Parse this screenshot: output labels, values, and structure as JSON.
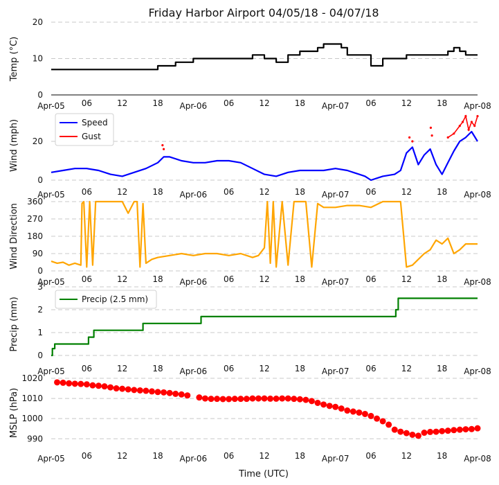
{
  "title": "Friday Harbor Airport 04/05/18 - 04/07/18",
  "xlabel": "Time (UTC)",
  "x_tick_labels": [
    "Apr-05",
    "06",
    "12",
    "18",
    "Apr-06",
    "06",
    "12",
    "18",
    "Apr-07",
    "06",
    "12",
    "18",
    "Apr-08"
  ],
  "x_range_hours": [
    0,
    72
  ],
  "colors": {
    "temp": "#000000",
    "speed": "#0000ff",
    "gust": "#ff0000",
    "dir": "#ffa500",
    "precip": "#008000",
    "mslp": "#ff0000",
    "grid": "#c8c8c8"
  },
  "chart_data": [
    {
      "id": "temp",
      "type": "line",
      "ylabel": "Temp ($^\\circ$C)",
      "ylabel_display": "Temp (°C)",
      "ylim": [
        0,
        20
      ],
      "yticks": [
        "0",
        "10",
        "20"
      ],
      "series": [
        {
          "name": "Temperature",
          "step": true,
          "x": [
            0,
            15,
            18,
            21,
            24,
            29,
            34,
            36,
            38,
            40,
            42,
            45,
            46,
            49,
            50,
            52,
            54,
            56,
            60,
            66,
            67,
            68,
            69,
            70,
            72
          ],
          "values": [
            7,
            7,
            8,
            9,
            10,
            10,
            11,
            10,
            9,
            11,
            12,
            13,
            14,
            13,
            11,
            11,
            8,
            10,
            11,
            11,
            12,
            13,
            12,
            11,
            11
          ]
        }
      ]
    },
    {
      "id": "wind",
      "type": "line",
      "ylabel": "Wind (mph)",
      "ylim": [
        0,
        35
      ],
      "yticks": [
        "0",
        "20"
      ],
      "legend": [
        "Speed",
        "Gust"
      ],
      "series": [
        {
          "name": "Speed",
          "x": [
            0,
            2,
            4,
            6,
            8,
            10,
            12,
            14,
            16,
            18,
            19,
            20,
            22,
            24,
            26,
            28,
            30,
            32,
            34,
            36,
            38,
            40,
            42,
            44,
            46,
            48,
            50,
            52,
            53,
            54,
            56,
            58,
            59,
            60,
            61,
            62,
            63,
            64,
            65,
            66,
            67,
            68,
            69,
            70,
            71,
            72
          ],
          "values": [
            4,
            5,
            6,
            6,
            5,
            3,
            2,
            4,
            6,
            9,
            12,
            12,
            10,
            9,
            9,
            10,
            10,
            9,
            6,
            3,
            2,
            4,
            5,
            5,
            5,
            6,
            5,
            3,
            2,
            0,
            2,
            3,
            5,
            14,
            17,
            8,
            13,
            16,
            8,
            3,
            9,
            15,
            20,
            22,
            25,
            20
          ]
        },
        {
          "name": "Gust",
          "x": [
            18.8,
            19.0,
            60.5,
            61.0,
            64.1,
            64.3,
            67.0,
            68.0,
            69.0,
            69.5,
            70.0,
            70.5,
            71.0,
            71.5,
            72.0
          ],
          "values": [
            18,
            16,
            22,
            20,
            27,
            23,
            22,
            24,
            28,
            30,
            33,
            26,
            30,
            28,
            33
          ]
        }
      ]
    },
    {
      "id": "dir",
      "type": "line",
      "ylabel": "Wind Direction",
      "ylim": [
        0,
        360
      ],
      "yticks": [
        "0",
        "90",
        "180",
        "270",
        "360"
      ],
      "series": [
        {
          "name": "Direction",
          "x": [
            0,
            1,
            2,
            3,
            4,
            5,
            5.2,
            5.5,
            6,
            6.5,
            7,
            7.5,
            8,
            9,
            10,
            11,
            12,
            13,
            14,
            14.5,
            15,
            15.5,
            16,
            17,
            18,
            20,
            22,
            24,
            26,
            28,
            30,
            32,
            34,
            35,
            36,
            36.5,
            37,
            37.5,
            38,
            39,
            40,
            41,
            42,
            43,
            44,
            45,
            46,
            48,
            50,
            52,
            54,
            56,
            57,
            58,
            59,
            60,
            61,
            62,
            63,
            64,
            65,
            66,
            67,
            68,
            69,
            70,
            71,
            72
          ],
          "values": [
            50,
            40,
            45,
            30,
            40,
            30,
            350,
            360,
            20,
            360,
            30,
            360,
            360,
            360,
            360,
            360,
            360,
            300,
            360,
            360,
            20,
            350,
            40,
            60,
            70,
            80,
            90,
            80,
            90,
            90,
            80,
            90,
            70,
            80,
            120,
            360,
            40,
            360,
            20,
            360,
            30,
            360,
            360,
            360,
            20,
            350,
            330,
            330,
            340,
            340,
            330,
            360,
            360,
            360,
            360,
            20,
            30,
            60,
            90,
            110,
            160,
            140,
            170,
            90,
            110,
            140,
            140,
            140
          ]
        }
      ]
    },
    {
      "id": "precip",
      "type": "line",
      "ylabel": "Precip (mm)",
      "ylim": [
        0,
        3
      ],
      "yticks": [
        "0",
        "1",
        "2",
        "3"
      ],
      "legend": [
        "Precip (2.5 mm)"
      ],
      "series": [
        {
          "name": "Precip (2.5 mm)",
          "step": true,
          "x": [
            0,
            0.2,
            0.6,
            6.3,
            7.2,
            15.5,
            25.3,
            55.2,
            58.2,
            58.6,
            72
          ],
          "values": [
            0,
            0.3,
            0.5,
            0.8,
            1.1,
            1.4,
            1.7,
            1.7,
            2.0,
            2.5,
            2.5
          ]
        }
      ]
    },
    {
      "id": "mslp",
      "type": "scatter",
      "ylabel": "MSLP (hPa)",
      "ylim": [
        987,
        1020
      ],
      "yticks": [
        "990",
        "1000",
        "1010",
        "1020"
      ],
      "series": [
        {
          "name": "MSLP",
          "x": [
            1,
            2,
            3,
            4,
            5,
            6,
            7,
            8,
            9,
            10,
            11,
            12,
            13,
            14,
            15,
            16,
            17,
            18,
            19,
            20,
            21,
            22,
            23,
            25,
            26,
            27,
            28,
            29,
            30,
            31,
            32,
            33,
            34,
            35,
            36,
            37,
            38,
            39,
            40,
            41,
            42,
            43,
            44,
            45,
            46,
            47,
            48,
            49,
            50,
            51,
            52,
            53,
            54,
            55,
            56,
            57,
            58,
            59,
            60,
            61,
            62,
            63,
            64,
            65,
            66,
            67,
            68,
            69,
            70,
            71,
            72
          ],
          "values": [
            1018,
            1017.8,
            1017.5,
            1017.3,
            1017.2,
            1017,
            1016.5,
            1016.3,
            1016,
            1015.5,
            1015,
            1014.8,
            1014.5,
            1014.2,
            1014,
            1013.8,
            1013.5,
            1013.2,
            1013,
            1012.7,
            1012.3,
            1012,
            1011.5,
            1010.5,
            1010,
            1009.8,
            1009.8,
            1009.7,
            1009.7,
            1009.8,
            1009.8,
            1009.8,
            1010,
            1010,
            1010,
            1009.9,
            1009.9,
            1010,
            1010,
            1009.8,
            1009.6,
            1009.3,
            1008.7,
            1007.8,
            1007,
            1006.3,
            1005.8,
            1005,
            1004,
            1003.5,
            1003,
            1002.3,
            1001.3,
            1000,
            998.7,
            997,
            994.5,
            993.5,
            992.8,
            992,
            991.5,
            993,
            993.4,
            993.5,
            993.8,
            994,
            994.3,
            994.5,
            994.7,
            994.8,
            995.2
          ]
        }
      ]
    }
  ]
}
